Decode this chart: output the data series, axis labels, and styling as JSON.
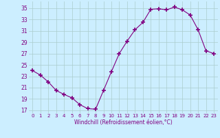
{
  "x": [
    0,
    1,
    2,
    3,
    4,
    5,
    6,
    7,
    8,
    9,
    10,
    11,
    12,
    13,
    14,
    15,
    16,
    17,
    18,
    19,
    20,
    21,
    22,
    23
  ],
  "y": [
    24.0,
    23.2,
    22.0,
    20.5,
    19.8,
    19.2,
    18.0,
    17.3,
    17.2,
    20.5,
    23.8,
    27.0,
    29.2,
    31.2,
    32.5,
    34.8,
    34.9,
    34.7,
    35.2,
    34.7,
    33.8,
    31.2,
    27.5,
    27.0
  ],
  "line_color": "#800080",
  "marker": "+",
  "marker_size": 4,
  "bg_color": "#cceeff",
  "grid_color": "#aacccc",
  "xlabel": "Windchill (Refroidissement éolien,°C)",
  "ylabel_ticks": [
    17,
    19,
    21,
    23,
    25,
    27,
    29,
    31,
    33,
    35
  ],
  "xlim": [
    -0.5,
    23.5
  ],
  "ylim": [
    16.5,
    36.2
  ],
  "xticks": [
    0,
    1,
    2,
    3,
    4,
    5,
    6,
    7,
    8,
    9,
    10,
    11,
    12,
    13,
    14,
    15,
    16,
    17,
    18,
    19,
    20,
    21,
    22,
    23
  ],
  "tick_color": "#800080",
  "label_color": "#800080"
}
